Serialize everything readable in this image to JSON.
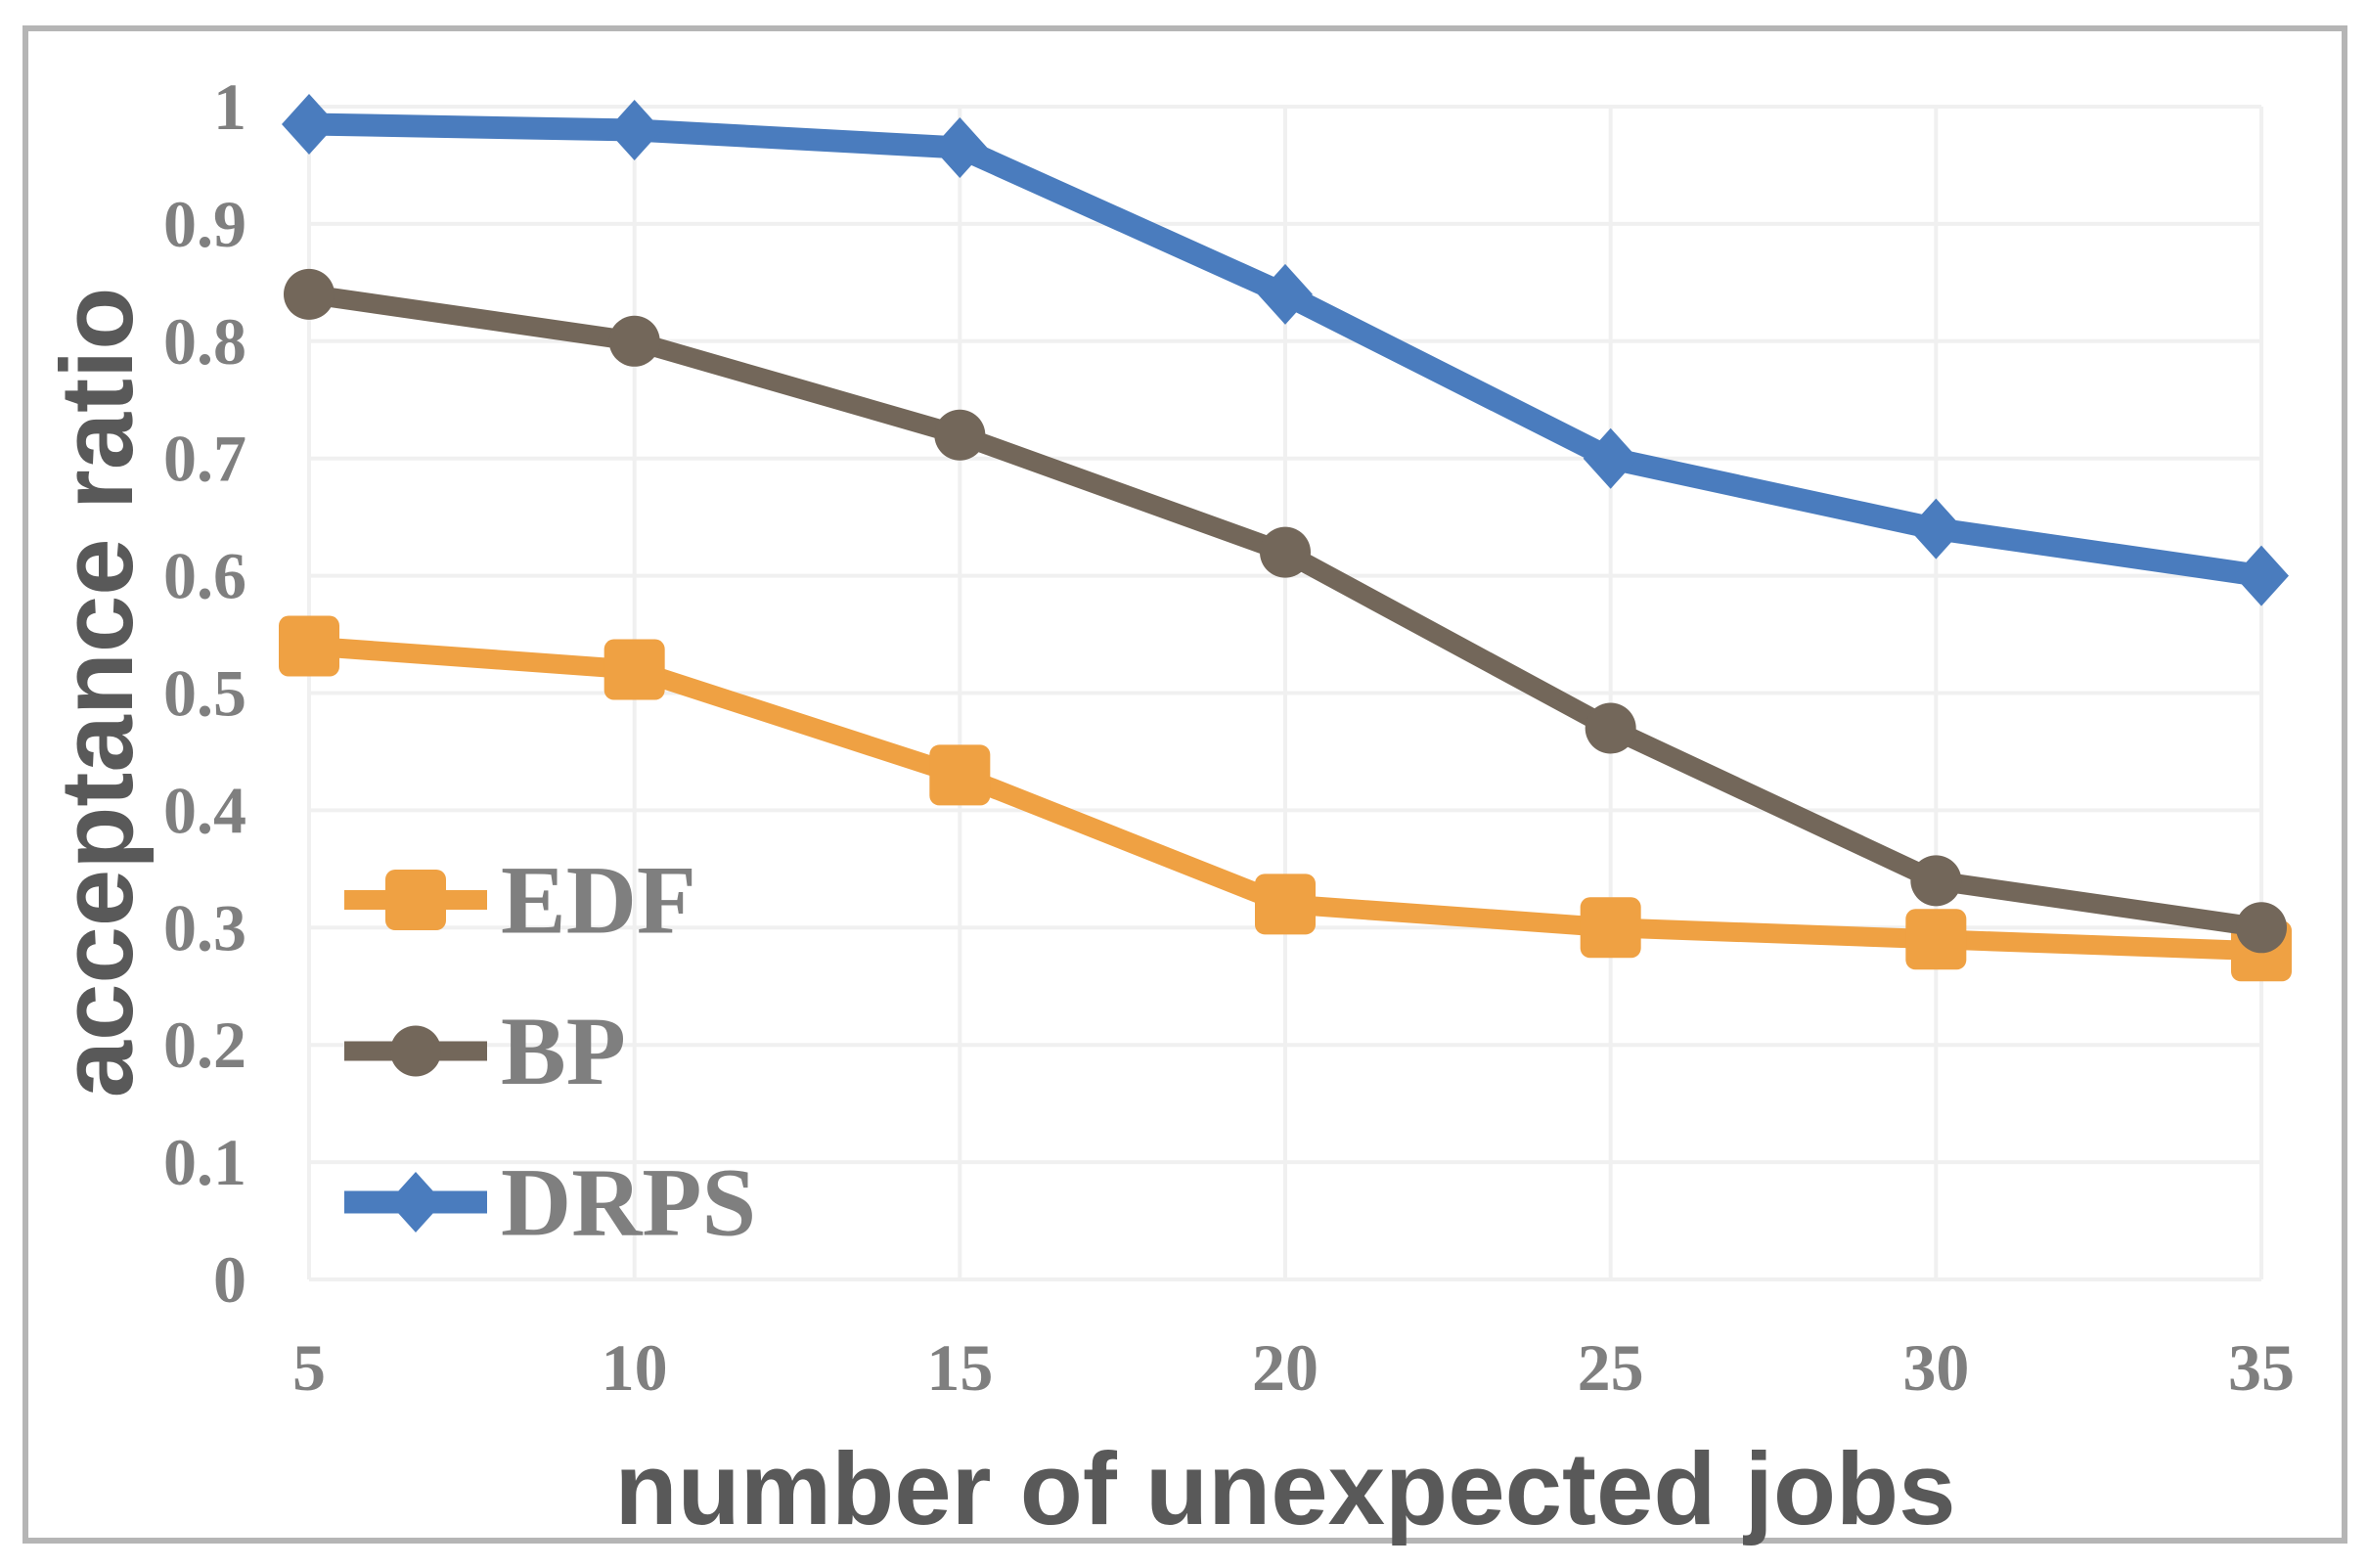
{
  "chart_data": {
    "type": "line",
    "title": "",
    "xlabel": "number of unexpected jobs",
    "ylabel": "acceptance ratio",
    "x": [
      5,
      10,
      15,
      20,
      25,
      30,
      35
    ],
    "x_tick_labels": [
      "5",
      "10",
      "15",
      "20",
      "25",
      "30",
      "35"
    ],
    "series": [
      {
        "name": "EDF",
        "marker": "square",
        "color": "#EFA143",
        "values": [
          0.54,
          0.52,
          0.43,
          0.32,
          0.3,
          0.29,
          0.28
        ]
      },
      {
        "name": "BP",
        "marker": "circle",
        "color": "#73675A",
        "values": [
          0.84,
          0.8,
          0.72,
          0.62,
          0.47,
          0.34,
          0.3
        ]
      },
      {
        "name": "DRPS",
        "marker": "diamond",
        "color": "#4A7CBE",
        "values": [
          0.985,
          0.98,
          0.965,
          0.84,
          0.7,
          0.64,
          0.6
        ]
      }
    ],
    "ylim": [
      0,
      1
    ],
    "y_tick_step": 0.1,
    "y_ticks_bottom_to_top": [
      "0",
      "0.1",
      "0.2",
      "0.3",
      "0.4",
      "0.5",
      "0.6",
      "0.7",
      "0.8",
      "0.9",
      "1"
    ],
    "grid": true,
    "legend_position": "inside-lower-left"
  },
  "style_colors": {
    "grid_line": "#f0f0f0",
    "tick_text": "#7f7f7f",
    "axis_title_text": "#595959",
    "chart_border": "#b5b5b5",
    "background": "#ffffff"
  }
}
